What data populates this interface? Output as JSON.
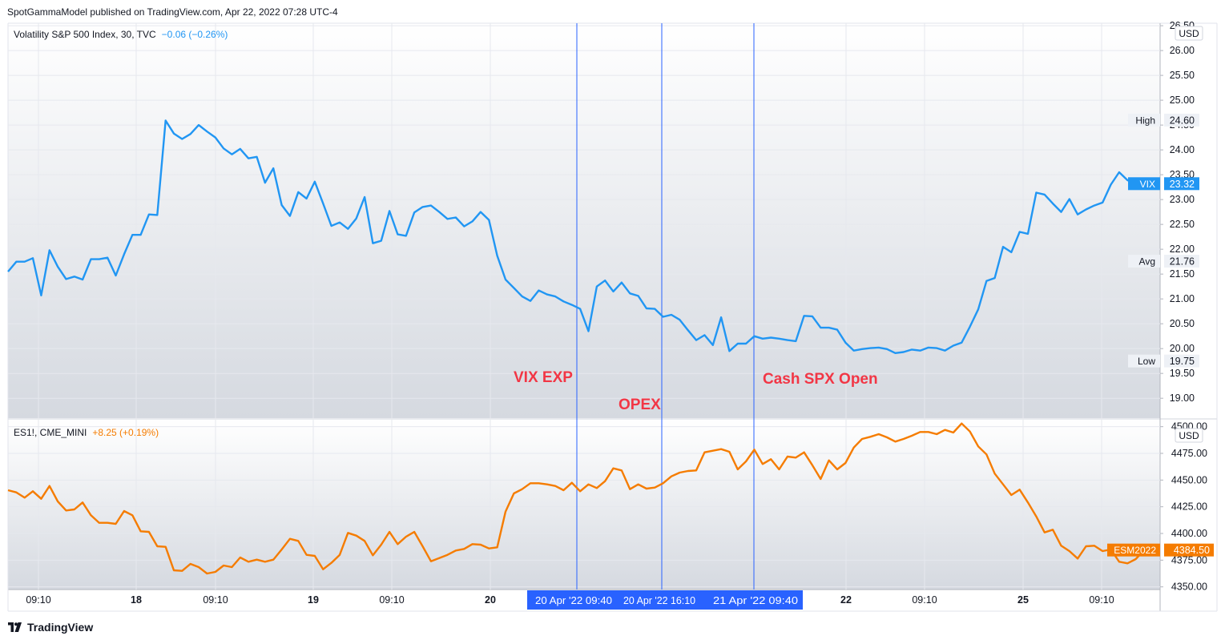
{
  "header": "SpotGammaModel published on TradingView.com, Apr 22, 2022 07:28 UTC-4",
  "brand": "TradingView",
  "colors": {
    "vix": "#2196f3",
    "es": "#f57c00",
    "marker": "#2962ff",
    "annotation": "#f23645"
  },
  "chart_data": [
    {
      "type": "line",
      "title": "Volatility S&P 500 Index, 30, TVC",
      "change": "−0.06 (−0.26%)",
      "currency": "USD",
      "ylim": [
        18.6,
        26.55
      ],
      "yticks": [
        "19.00",
        "19.50",
        "20.00",
        "20.50",
        "21.00",
        "21.50",
        "22.00",
        "22.50",
        "23.00",
        "23.50",
        "24.00",
        "24.50",
        "25.00",
        "25.50",
        "26.00",
        "26.50"
      ],
      "price_labels": [
        {
          "tag": "High",
          "value": "24.60"
        },
        {
          "tag": "VIX",
          "value": "23.32"
        },
        {
          "tag": "Avg",
          "value": "21.76"
        },
        {
          "tag": "Low",
          "value": "19.75"
        }
      ],
      "annotations": [
        "VIX EXP",
        "OPEX",
        "Cash SPX Open"
      ],
      "series": [
        {
          "name": "VIX",
          "values": [
            21.55,
            21.75,
            21.75,
            21.82,
            21.07,
            21.98,
            21.65,
            21.4,
            21.45,
            21.39,
            21.8,
            21.8,
            21.83,
            21.47,
            21.9,
            22.29,
            22.29,
            22.7,
            22.69,
            24.59,
            24.33,
            24.22,
            24.32,
            24.5,
            24.37,
            24.25,
            24.03,
            23.91,
            24.02,
            23.83,
            23.86,
            23.34,
            23.63,
            22.89,
            22.67,
            23.15,
            23.02,
            23.36,
            22.92,
            22.47,
            22.54,
            22.41,
            22.62,
            23.05,
            22.12,
            22.17,
            22.77,
            22.3,
            22.27,
            22.74,
            22.85,
            22.88,
            22.75,
            22.61,
            22.64,
            22.46,
            22.56,
            22.75,
            22.59,
            21.87,
            21.39,
            21.22,
            21.05,
            20.96,
            21.17,
            21.09,
            21.05,
            20.95,
            20.88,
            20.8,
            20.35,
            21.25,
            21.37,
            21.15,
            21.33,
            21.11,
            21.06,
            20.81,
            20.8,
            20.64,
            20.68,
            20.58,
            20.37,
            20.17,
            20.27,
            20.07,
            20.63,
            19.95,
            20.1,
            20.1,
            20.25,
            20.2,
            20.22,
            20.2,
            20.17,
            20.15,
            20.66,
            20.65,
            20.42,
            20.42,
            20.38,
            20.12,
            19.96,
            19.99,
            20.01,
            20.02,
            19.99,
            19.91,
            19.93,
            19.98,
            19.96,
            20.02,
            20.01,
            19.96,
            20.06,
            20.12,
            20.44,
            20.79,
            21.36,
            21.42,
            22.05,
            21.94,
            22.35,
            22.31,
            23.14,
            23.1,
            22.92,
            22.75,
            23.01,
            22.7,
            22.8,
            22.88,
            22.94,
            23.3,
            23.55,
            23.39,
            23.32
          ]
        }
      ]
    },
    {
      "type": "line",
      "title": "ES1!, CME_MINI",
      "change": "+8.25 (+0.19%)",
      "currency": "USD",
      "ylim": [
        4347.5,
        4506.5
      ],
      "yticks": [
        "4350.00",
        "4375.00",
        "4400.00",
        "4425.00",
        "4450.00",
        "4475.00",
        "4500.00"
      ],
      "price_labels": [
        {
          "tag": "ESM2022",
          "value": "4384.50"
        }
      ],
      "x_axis": {
        "ticks": [
          "09:10",
          "18",
          "09:10",
          "19",
          "09:10",
          "20",
          "22",
          "09:10",
          "25",
          "09:10"
        ],
        "marker_labels": [
          "20 Apr '22   09:40",
          "20 Apr '22   16:10",
          "21 Apr '22   09:40"
        ]
      },
      "series": [
        {
          "name": "ESM2022",
          "values": [
            4440.5,
            4438.5,
            4433.5,
            4439.5,
            4432.5,
            4444.5,
            4430.0,
            4421.5,
            4422.5,
            4429.0,
            4417.0,
            4410.0,
            4410.0,
            4409.0,
            4421.0,
            4417.0,
            4402.0,
            4401.5,
            4388.0,
            4387.5,
            4365.5,
            4365.0,
            4371.5,
            4368.5,
            4362.5,
            4364.0,
            4370.0,
            4368.5,
            4377.5,
            4373.5,
            4375.5,
            4373.5,
            4375.5,
            4385.0,
            4395.0,
            4393.0,
            4380.0,
            4379.0,
            4366.5,
            4372.5,
            4380.0,
            4400.5,
            4398.0,
            4393.0,
            4379.5,
            4389.5,
            4401.5,
            4390.0,
            4397.0,
            4401.5,
            4388.0,
            4374.0,
            4377.0,
            4380.0,
            4384.0,
            4385.5,
            4390.0,
            4389.5,
            4386.0,
            4387.0,
            4420.5,
            4437.5,
            4441.5,
            4447.0,
            4447.0,
            4446.0,
            4444.5,
            4440.5,
            4447.5,
            4439.5,
            4446.0,
            4442.5,
            4449.0,
            4461.0,
            4459.0,
            4441.5,
            4446.0,
            4442.0,
            4443.0,
            4447.0,
            4453.5,
            4457.0,
            4458.5,
            4459.0,
            4476.0,
            4477.5,
            4479.0,
            4476.5,
            4460.0,
            4467.5,
            4478.5,
            4465.0,
            4469.5,
            4460.0,
            4472.0,
            4471.0,
            4476.0,
            4464.0,
            4451.0,
            4468.5,
            4460.0,
            4466.0,
            4480.5,
            4488.5,
            4490.5,
            4493.0,
            4490.0,
            4486.0,
            4488.5,
            4491.5,
            4495.0,
            4495.0,
            4493.0,
            4497.0,
            4494.5,
            4503.0,
            4495.5,
            4481.5,
            4474.0,
            4456.0,
            4446.0,
            4436.0,
            4441.0,
            4429.0,
            4416.0,
            4401.0,
            4403.5,
            4388.5,
            4383.5,
            4376.5,
            4388.0,
            4388.5,
            4383.5,
            4385.0,
            4373.5,
            4372.0,
            4376.0,
            4384.5
          ]
        }
      ]
    }
  ]
}
